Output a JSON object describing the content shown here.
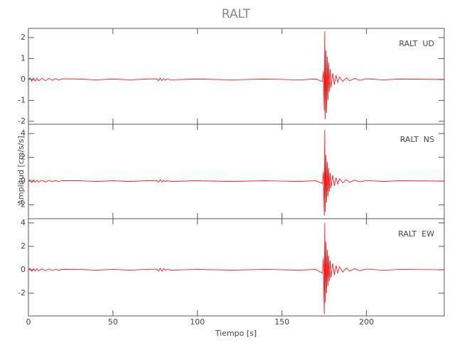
{
  "chart_data": [
    {
      "type": "line",
      "title": "RALT",
      "label": "RALT  UD",
      "xlim": [
        0,
        246
      ],
      "xticks": [
        0,
        50,
        100,
        150,
        200
      ],
      "ylim": [
        -2.14,
        2.44
      ],
      "yticks": [
        -2,
        -1,
        0,
        1,
        2
      ],
      "x": [
        0,
        1,
        2,
        3,
        4,
        5,
        6,
        8,
        10,
        12,
        14,
        16,
        18,
        20,
        30,
        40,
        50,
        60,
        70,
        76,
        77,
        78,
        79,
        80,
        81,
        82,
        84,
        100,
        120,
        140,
        160,
        170,
        174,
        174.5,
        175,
        175.3,
        175.6,
        176,
        176.4,
        176.8,
        177.2,
        177.6,
        178,
        178.5,
        179,
        180,
        181,
        182,
        183,
        184,
        186,
        188,
        190,
        193,
        196,
        200,
        210,
        220,
        246
      ],
      "series": [
        {
          "color": "#ff0000",
          "values": [
            0,
            0.08,
            -0.09,
            0.07,
            -0.08,
            0.06,
            -0.07,
            0.05,
            -0.06,
            0.05,
            -0.04,
            0.04,
            -0.03,
            0.03,
            0.02,
            -0.02,
            0.02,
            -0.02,
            0.02,
            0.03,
            -0.06,
            0.07,
            -0.06,
            0.05,
            -0.04,
            0.03,
            -0.02,
            0.02,
            -0.02,
            0.02,
            -0.02,
            0.02,
            -0.1,
            0.4,
            -1.5,
            2.3,
            -1.9,
            1.4,
            -1.6,
            1.1,
            -1.0,
            0.8,
            -0.6,
            0.5,
            -0.4,
            0.3,
            -0.25,
            0.2,
            -0.15,
            0.12,
            -0.1,
            0.08,
            -0.06,
            0.05,
            -0.04,
            0.03,
            -0.02,
            0.02,
            0
          ]
        }
      ]
    },
    {
      "type": "line",
      "label": "RALT  NS",
      "ylabel": "Amplitud [cm/s/s]",
      "xlim": [
        0,
        246
      ],
      "xticks": [
        0,
        50,
        100,
        150,
        200
      ],
      "ylim": [
        -3.16,
        4.78
      ],
      "yticks": [
        -2,
        0,
        2,
        4
      ],
      "x": [
        0,
        1,
        2,
        3,
        4,
        5,
        6,
        8,
        10,
        12,
        14,
        16,
        18,
        20,
        30,
        40,
        50,
        60,
        70,
        76,
        77,
        78,
        79,
        80,
        81,
        82,
        84,
        100,
        120,
        140,
        160,
        170,
        174,
        174.5,
        175,
        175.3,
        175.6,
        176,
        176.4,
        176.8,
        177.2,
        177.6,
        178,
        178.5,
        179,
        180,
        181,
        182,
        183,
        184,
        186,
        188,
        190,
        193,
        196,
        200,
        210,
        220,
        246
      ],
      "series": [
        {
          "color": "#ff0000",
          "values": [
            0,
            0.1,
            -0.12,
            0.1,
            -0.1,
            0.08,
            -0.09,
            0.07,
            -0.08,
            0.06,
            -0.05,
            0.05,
            -0.04,
            0.04,
            0.03,
            -0.03,
            0.03,
            -0.03,
            0.03,
            0.04,
            -0.1,
            0.12,
            -0.1,
            0.08,
            -0.06,
            0.04,
            -0.03,
            0.03,
            -0.03,
            0.03,
            -0.03,
            0.03,
            -0.2,
            0.8,
            -2.9,
            4.3,
            -2.6,
            2.2,
            -1.8,
            1.6,
            -1.3,
            1.1,
            -0.9,
            0.7,
            -0.6,
            0.5,
            -0.4,
            0.3,
            -0.25,
            0.2,
            -0.15,
            0.12,
            -0.1,
            0.08,
            -0.06,
            0.05,
            -0.03,
            0.03,
            0
          ]
        }
      ]
    },
    {
      "type": "line",
      "label": "RALT  EW",
      "xlabel": "Tiempo [s]",
      "xlim": [
        0,
        246
      ],
      "xticks": [
        0,
        50,
        100,
        150,
        200
      ],
      "ylim": [
        -3.94,
        4.36
      ],
      "yticks": [
        -2,
        0,
        2,
        4
      ],
      "x": [
        0,
        1,
        2,
        3,
        4,
        5,
        6,
        8,
        10,
        12,
        14,
        16,
        18,
        20,
        30,
        40,
        50,
        60,
        70,
        76,
        77,
        78,
        79,
        80,
        81,
        82,
        84,
        100,
        120,
        140,
        160,
        170,
        174,
        174.5,
        175,
        175.3,
        175.6,
        176,
        176.4,
        176.8,
        177.2,
        177.6,
        178,
        178.5,
        179,
        180,
        181,
        182,
        183,
        184,
        186,
        188,
        190,
        193,
        196,
        200,
        210,
        220,
        246
      ],
      "series": [
        {
          "color": "#ff0000",
          "values": [
            0,
            0.12,
            -0.13,
            0.1,
            -0.11,
            0.09,
            -0.1,
            0.08,
            -0.08,
            0.07,
            -0.06,
            0.05,
            -0.05,
            0.04,
            0.03,
            -0.03,
            0.03,
            -0.03,
            0.03,
            0.05,
            -0.12,
            0.14,
            -0.12,
            0.1,
            -0.07,
            0.05,
            -0.03,
            0.03,
            -0.03,
            0.03,
            -0.03,
            0.03,
            -0.3,
            1.0,
            -3.8,
            4.0,
            -2.8,
            2.4,
            -2.0,
            1.7,
            -1.4,
            1.2,
            -1.0,
            0.8,
            -0.7,
            0.55,
            -0.45,
            0.35,
            -0.3,
            0.25,
            -0.2,
            0.15,
            -0.12,
            0.1,
            -0.08,
            0.06,
            -0.04,
            0.03,
            0
          ]
        }
      ]
    }
  ]
}
